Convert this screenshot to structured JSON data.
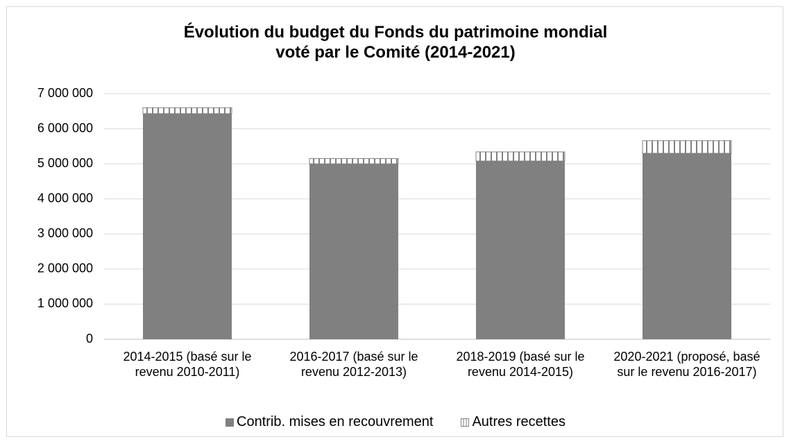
{
  "chart_data": {
    "type": "stacked_bar",
    "title": "Évolution du budget du Fonds du patrimoine mondial\nvoté par le Comité (2014-2021)",
    "categories": [
      "2014-2015 (basé sur le revenu 2010-2011)",
      "2016-2017 (basé sur le revenu 2012-2013)",
      "2018-2019 (basé sur le revenu 2014-2015)",
      "2020-2021 (proposé, basé sur le revenu 2016-2017)"
    ],
    "series": [
      {
        "name": "Contrib. mises en recouvrement",
        "color": "#808080",
        "pattern": "solid",
        "values": [
          6430000,
          5000000,
          5080000,
          5300000
        ]
      },
      {
        "name": "Autres recettes",
        "color": "#808080",
        "pattern": "vertical-lines",
        "values": [
          170000,
          150000,
          260000,
          360000
        ]
      }
    ],
    "ylim": [
      0,
      7000000
    ],
    "yticks": [
      0,
      {
        "value": 1000000,
        "label": "1 000 000"
      },
      {
        "value": 2000000,
        "label": "2 000 000"
      },
      {
        "value": 3000000,
        "label": "3 000 000"
      },
      {
        "value": 4000000,
        "label": "4 000 000"
      },
      {
        "value": 5000000,
        "label": "5 000 000"
      },
      {
        "value": 6000000,
        "label": "6 000 000"
      },
      {
        "value": 7000000,
        "label": "7 000 000"
      }
    ],
    "grid": true,
    "legend": "bottom"
  }
}
